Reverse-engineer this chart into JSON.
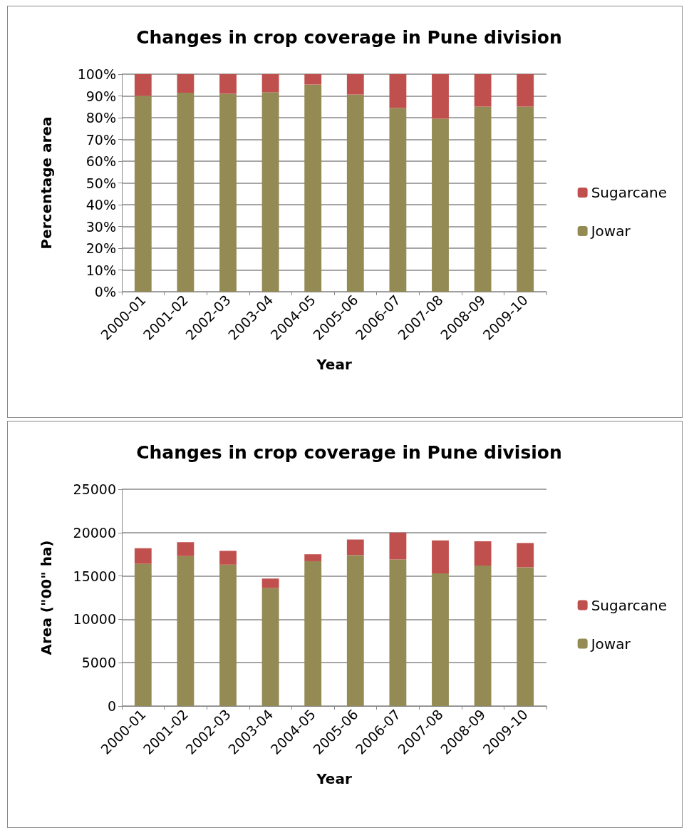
{
  "chart_data": [
    {
      "type": "bar",
      "title": "Changes in crop coverage in Pune division",
      "xlabel": "Year",
      "ylabel": "Percentage area",
      "categories": [
        "2000-01",
        "2001-02",
        "2002-03",
        "2003-04",
        "2004-05",
        "2005-06",
        "2006-07",
        "2007-08",
        "2008-09",
        "2009-10"
      ],
      "series": [
        {
          "name": "Jowar",
          "color": "#948a54",
          "values": [
            90,
            91.5,
            91,
            91.7,
            95.2,
            90.6,
            84.4,
            79.5,
            85.1,
            85.1
          ]
        },
        {
          "name": "Sugarcane",
          "color": "#c0504d",
          "values": [
            10,
            8.5,
            9,
            8.3,
            4.8,
            9.4,
            15.6,
            20.5,
            14.9,
            14.9
          ]
        }
      ],
      "stacked": true,
      "ylim": [
        0,
        100
      ],
      "yticks": [
        {
          "value": 0,
          "label": "0%"
        },
        {
          "value": 10,
          "label": "10%"
        },
        {
          "value": 20,
          "label": "20%"
        },
        {
          "value": 30,
          "label": "30%"
        },
        {
          "value": 40,
          "label": "40%"
        },
        {
          "value": 50,
          "label": "50%"
        },
        {
          "value": 60,
          "label": "60%"
        },
        {
          "value": 70,
          "label": "70%"
        },
        {
          "value": 80,
          "label": "80%"
        },
        {
          "value": 90,
          "label": "90%"
        },
        {
          "value": 100,
          "label": "100%"
        }
      ],
      "grid": "y",
      "legend": "right"
    },
    {
      "type": "bar",
      "title": "Changes in crop coverage in Pune division",
      "xlabel": "Year",
      "ylabel": "Area (\"00\" ha)",
      "categories": [
        "2000-01",
        "2001-02",
        "2002-03",
        "2003-04",
        "2004-05",
        "2005-06",
        "2006-07",
        "2007-08",
        "2008-09",
        "2009-10"
      ],
      "series": [
        {
          "name": "Jowar",
          "color": "#948a54",
          "values": [
            16400,
            17300,
            16300,
            13600,
            16700,
            17400,
            16900,
            15300,
            16200,
            16000
          ]
        },
        {
          "name": "Sugarcane",
          "color": "#c0504d",
          "values": [
            1800,
            1600,
            1600,
            1100,
            800,
            1800,
            3100,
            3800,
            2800,
            2800
          ]
        }
      ],
      "stacked": true,
      "ylim": [
        0,
        25000
      ],
      "yticks": [
        0,
        5000,
        10000,
        15000,
        20000,
        25000
      ],
      "grid": "y",
      "legend": "right"
    }
  ]
}
